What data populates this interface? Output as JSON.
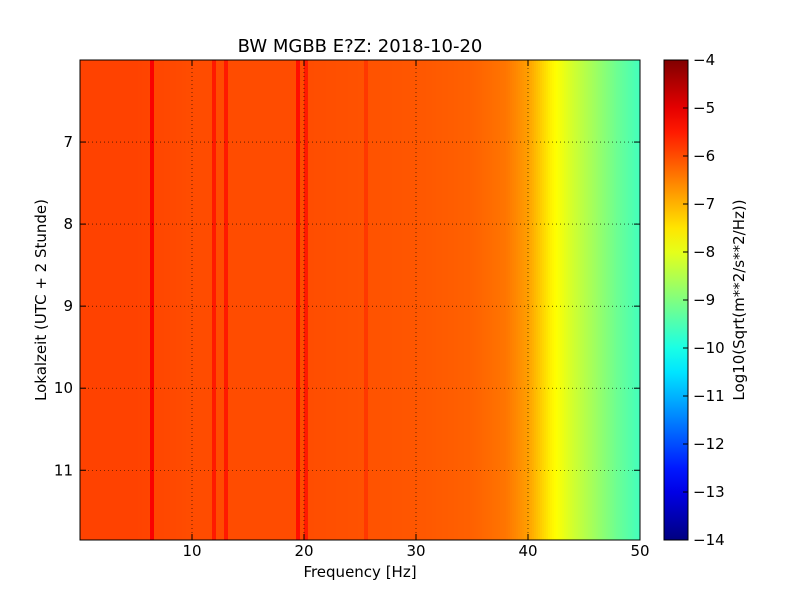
{
  "chart_data": {
    "type": "heatmap",
    "title": "BW MGBB E?Z: 2018-10-20",
    "xlabel": "Frequency [Hz]",
    "ylabel": "Lokalzeit (UTC + 2 Stunde)",
    "xlim": [
      0,
      50
    ],
    "ylim": [
      6.0,
      11.85
    ],
    "y_inverted": true,
    "x_ticks": [
      10,
      20,
      30,
      40,
      50
    ],
    "x_tick_labels": [
      "10",
      "20",
      "30",
      "40",
      "50"
    ],
    "y_ticks": [
      7,
      8,
      9,
      10,
      11
    ],
    "y_tick_labels": [
      "7",
      "8",
      "9",
      "10",
      "11"
    ],
    "grid": true,
    "colormap": "jet",
    "colorbar": {
      "label": "Log10(Sqrt(m**2/s**2/Hz))",
      "range": [
        -14,
        -4
      ],
      "ticks": [
        -4,
        -5,
        -6,
        -7,
        -8,
        -9,
        -10,
        -11,
        -12,
        -13,
        -14
      ],
      "tick_labels": [
        "−4",
        "−5",
        "−6",
        "−7",
        "−8",
        "−9",
        "−10",
        "−11",
        "−12",
        "−13",
        "−14"
      ]
    },
    "spectral_profile": {
      "frequency": [
        0,
        5,
        10,
        20,
        30,
        35,
        38,
        40,
        42,
        44,
        46,
        48,
        50
      ],
      "level": [
        -5.9,
        -5.9,
        -6.0,
        -6.0,
        -6.1,
        -6.2,
        -6.4,
        -6.8,
        -7.6,
        -8.2,
        -8.7,
        -9.2,
        -9.6
      ]
    },
    "line_features": [
      {
        "frequency": 6.5,
        "level": -5.2
      },
      {
        "frequency": 12.0,
        "level": -5.5
      },
      {
        "frequency": 13.0,
        "level": -5.5
      },
      {
        "frequency": 19.5,
        "level": -5.4
      },
      {
        "frequency": 20.2,
        "level": -5.5
      },
      {
        "frequency": 25.5,
        "level": -5.8
      }
    ]
  }
}
